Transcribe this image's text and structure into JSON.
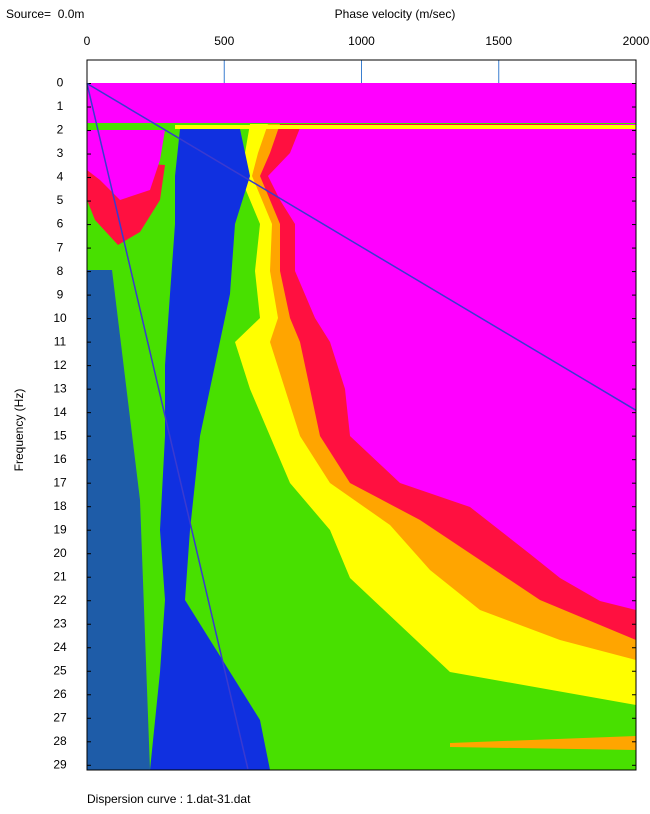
{
  "chart_data": {
    "type": "line",
    "source_label": "Source=  0.0m",
    "x_label": "Phase velocity (m/sec)",
    "y_label": "Frequency (Hz)",
    "caption": "Dispersion curve : 1.dat-31.dat",
    "xlim": [
      0,
      2000
    ],
    "xticks": [
      0,
      500,
      1000,
      1500,
      2000
    ],
    "ylim": [
      -1,
      29.2
    ],
    "y_inverted": true,
    "yticks": [
      0,
      1,
      2,
      3,
      4,
      5,
      6,
      7,
      8,
      9,
      10,
      11,
      12,
      13,
      14,
      15,
      16,
      17,
      18,
      19,
      20,
      21,
      22,
      23,
      24,
      25,
      26,
      27,
      28,
      29
    ],
    "series": [
      {
        "color": "#3a3ad0",
        "x": [
          0,
          2000
        ],
        "values": [
          0,
          13.9
        ]
      },
      {
        "color": "#3a3ad0",
        "x": [
          0,
          586
        ],
        "values": [
          0,
          29.15
        ]
      }
    ]
  }
}
